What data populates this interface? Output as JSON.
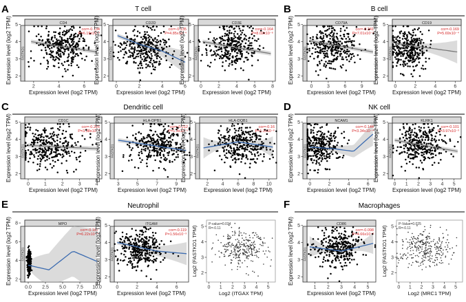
{
  "figure": {
    "panels": [
      {
        "letter": "A",
        "title": "T cell"
      },
      {
        "letter": "B",
        "title": "B cell"
      },
      {
        "letter": "C",
        "title": "Dendritic cell"
      },
      {
        "letter": "D",
        "title": "NK cell"
      },
      {
        "letter": "E",
        "title": "Neutrophil"
      },
      {
        "letter": "F",
        "title": "Macrophages"
      }
    ]
  },
  "chart_data": [
    {
      "id": "cd4",
      "panel": "A",
      "type": "scatter",
      "gene": "CD4",
      "strip": "FASTKD1",
      "corr": "cor=-0.134",
      "pval": "P=6.19x10⁻³",
      "xlabel": "Expression level (log2 TPM)",
      "ylabel": "Expression level (log2 TPM)",
      "xlim": [
        1.3,
        7.4
      ],
      "ylim": [
        1.7,
        5.3
      ],
      "xticks": [
        2,
        4,
        6
      ],
      "yticks": [
        2,
        3,
        4,
        5
      ],
      "fit": [
        [
          1.8,
          4.0
        ],
        [
          7.0,
          3.4
        ]
      ],
      "band": "narrow",
      "color": "#7a7a7a",
      "n": 330,
      "seed": 11,
      "xc": 4.4,
      "xs": 1.1,
      "yc": 3.7,
      "ys": 0.6
    },
    {
      "id": "cd2d",
      "panel": "A",
      "type": "scatter",
      "gene": "CD2D",
      "strip": "FASTKD1",
      "corr": "cor=-0.135",
      "pval": "P=4.85x10⁻⁴",
      "xlabel": "Expression level (log2 TPM)",
      "ylabel": "Expression level (log2 TPM)",
      "xlim": [
        -0.3,
        6.3
      ],
      "ylim": [
        1.7,
        5.3
      ],
      "xticks": [
        0,
        2,
        4,
        6
      ],
      "yticks": [
        2,
        3,
        4,
        5
      ],
      "fit": [
        [
          0.1,
          4.35
        ],
        [
          2.0,
          3.85
        ],
        [
          4.0,
          3.45
        ],
        [
          6.0,
          2.8
        ]
      ],
      "band": "wide-right",
      "color": "#3b6bb0",
      "n": 330,
      "seed": 23,
      "xc": 2.6,
      "xs": 1.2,
      "yc": 3.6,
      "ys": 0.6
    },
    {
      "id": "cd3e",
      "panel": "A",
      "type": "scatter",
      "gene": "CD3E",
      "strip": "FASTKD1",
      "corr": "cor=-0.164",
      "pval": "P=8.02x10⁻⁶",
      "xlabel": "Expression level (log2 TPM)",
      "ylabel": "Expression level (log2 TPM)",
      "xlim": [
        -0.3,
        8.3
      ],
      "ylim": [
        1.7,
        5.3
      ],
      "xticks": [
        0,
        2,
        4,
        6,
        8
      ],
      "yticks": [
        2,
        3,
        4,
        5
      ],
      "fit": [
        [
          0.2,
          4.0
        ],
        [
          7.8,
          3.3
        ]
      ],
      "band": "narrow",
      "color": "#7a7a7a",
      "n": 330,
      "seed": 37,
      "xc": 3.6,
      "xs": 1.5,
      "yc": 3.7,
      "ys": 0.6
    },
    {
      "id": "cd79a",
      "panel": "B",
      "type": "scatter",
      "gene": "CD79A",
      "strip": "FASTKD1",
      "corr": "cor=-0.241",
      "pval": "P=7.01x10⁻¹",
      "xlabel": "Expression level (log2 TPM)",
      "ylabel": "Expression level (log2 TPM)",
      "xlim": [
        -0.8,
        11.5
      ],
      "ylim": [
        1.7,
        5.3
      ],
      "xticks": [
        0,
        3,
        6,
        9
      ],
      "yticks": [
        2,
        3,
        4,
        5
      ],
      "fit": [
        [
          -0.3,
          4.05
        ],
        [
          11.0,
          3.4
        ]
      ],
      "band": "narrow",
      "color": "#7a7a7a",
      "n": 330,
      "seed": 41,
      "xc": 3.8,
      "xs": 2.2,
      "yc": 3.7,
      "ys": 0.6
    },
    {
      "id": "cd19",
      "panel": "B",
      "type": "scatter",
      "gene": "CD19",
      "strip": "FASTKD1",
      "corr": "cor=-0.169",
      "pval": "P=5.69x10⁻⁴",
      "xlabel": "Expression level (log2 TPM)",
      "ylabel": "Expression level (log2 TPM)",
      "xlim": [
        -0.3,
        6.6
      ],
      "ylim": [
        1.7,
        5.3
      ],
      "xticks": [
        0,
        2,
        4,
        6
      ],
      "yticks": [
        2,
        3,
        4,
        5
      ],
      "fit": [
        [
          0.0,
          3.9
        ],
        [
          6.2,
          3.4
        ]
      ],
      "band": "wide-right",
      "color": "#7a7a7a",
      "n": 330,
      "seed": 53,
      "xc": 1.2,
      "xs": 1.0,
      "yc": 3.6,
      "ys": 0.6
    },
    {
      "id": "cd1c",
      "panel": "C",
      "type": "scatter",
      "gene": "CD1C",
      "strip": "FASTKD1",
      "corr": "cor=-0.226",
      "pval": "P=3.38x10⁻⁴",
      "xlabel": "Expression level (log2 TPM)",
      "ylabel": "Expression level (log2 TPM)",
      "xlim": [
        -0.2,
        4.3
      ],
      "ylim": [
        1.7,
        5.3
      ],
      "xticks": [
        0,
        1,
        2,
        3,
        4
      ],
      "yticks": [
        2,
        3,
        4,
        5
      ],
      "fit": [
        [
          0.0,
          3.65
        ],
        [
          4.1,
          3.45
        ]
      ],
      "band": "narrow",
      "color": "#7a7a7a",
      "n": 330,
      "seed": 61,
      "xc": 1.3,
      "xs": 0.9,
      "yc": 3.6,
      "ys": 0.6
    },
    {
      "id": "hladpb1",
      "panel": "C",
      "type": "scatter",
      "gene": "HLA-DPB1",
      "strip": "FASTKD1",
      "corr": "cor=-0.212",
      "pval": "P=1.3x10⁻⁵",
      "xlabel": "Expression level (log2 TPM)",
      "ylabel": "Expression level (log2 TPM)",
      "xlim": [
        2.6,
        10.4
      ],
      "ylim": [
        1.7,
        5.3
      ],
      "xticks": [
        3,
        5,
        7,
        9
      ],
      "yticks": [
        2,
        3,
        4,
        5
      ],
      "fit": [
        [
          3.0,
          3.95
        ],
        [
          10.0,
          3.35
        ]
      ],
      "band": "narrow",
      "color": "#3b6bb0",
      "n": 330,
      "seed": 71,
      "xc": 7.0,
      "xs": 1.5,
      "yc": 3.7,
      "ys": 0.6
    },
    {
      "id": "hladqb1",
      "panel": "C",
      "type": "scatter",
      "gene": "HLA-DQB1",
      "strip": "FASTKD1",
      "corr": "cor=-0.16",
      "pval": "P=1.1x10⁻⁶",
      "xlabel": "Expression level (log2 TPM)",
      "ylabel": "Expression level (log2 TPM)",
      "xlim": [
        1.0,
        11.0
      ],
      "ylim": [
        1.7,
        5.3
      ],
      "xticks": [
        2,
        4,
        6,
        8,
        10
      ],
      "yticks": [
        2,
        3,
        4,
        5
      ],
      "fit": [
        [
          1.5,
          3.5
        ],
        [
          6.0,
          3.85
        ],
        [
          10.5,
          3.55
        ]
      ],
      "band": "wide-ends",
      "color": "#3b6bb0",
      "n": 330,
      "seed": 83,
      "xc": 6.5,
      "xs": 1.8,
      "yc": 3.7,
      "ys": 0.6
    },
    {
      "id": "ncam1",
      "panel": "D",
      "type": "scatter",
      "gene": "NCAM1",
      "strip": "FASTKD1",
      "corr": "cor=-0.144",
      "pval": "P=3.34x10⁻⁴",
      "xlabel": "Expression level (log2 TPM)",
      "ylabel": "Expression level (log2 TPM)",
      "xlim": [
        -0.3,
        6.8
      ],
      "ylim": [
        1.7,
        5.3
      ],
      "xticks": [
        0,
        2,
        4,
        6
      ],
      "yticks": [
        2,
        3,
        4,
        5
      ],
      "fit": [
        [
          0.0,
          3.55
        ],
        [
          2.5,
          3.45
        ],
        [
          4.5,
          3.3
        ],
        [
          6.5,
          4.3
        ]
      ],
      "band": "wide-right",
      "color": "#3b6bb0",
      "n": 330,
      "seed": 97,
      "xc": 1.0,
      "xs": 1.1,
      "yc": 3.6,
      "ys": 0.6
    },
    {
      "id": "klrk1",
      "panel": "D",
      "type": "scatter",
      "gene": "KLRK1",
      "strip": "FASTKD1",
      "corr": "cor=-0.101",
      "pval": "P=3.97x10⁻³",
      "xlabel": "Expression level (log2 TPM)",
      "ylabel": "Expression level (log2 TPM)",
      "xlim": [
        -0.2,
        5.6
      ],
      "ylim": [
        1.7,
        5.3
      ],
      "xticks": [
        0,
        1,
        2,
        3,
        4,
        5
      ],
      "yticks": [
        2,
        3,
        4,
        5
      ],
      "fit": [
        [
          0.0,
          3.95
        ],
        [
          5.3,
          3.3
        ]
      ],
      "band": "narrow",
      "color": "#7a7a7a",
      "n": 330,
      "seed": 103,
      "xc": 2.2,
      "xs": 1.1,
      "yc": 3.7,
      "ys": 0.6
    },
    {
      "id": "mpo",
      "panel": "E",
      "type": "scatter",
      "gene": "MPO",
      "strip": "FASTKD1",
      "corr": "cor=-0.167",
      "pval": "P=6.22x10⁻⁴",
      "xlabel": "Expression level (log2 TPM)",
      "ylabel": "Expression level (log2 TPM)",
      "xlim": [
        -0.5,
        10.5
      ],
      "ylim": [
        1.7,
        8.3
      ],
      "xticks": [
        0.0,
        2.5,
        5.0,
        7.5,
        10.0
      ],
      "yticks": [
        2,
        4,
        6,
        8
      ],
      "fit": [
        [
          0.0,
          3.5
        ],
        [
          3.0,
          3.0
        ],
        [
          6.5,
          5.0
        ],
        [
          10.0,
          3.9
        ]
      ],
      "band": "huge",
      "color": "#3b6bb0",
      "n": 330,
      "seed": 113,
      "xc": 0.1,
      "xs": 0.12,
      "yc": 3.8,
      "ys": 0.6
    },
    {
      "id": "itgam",
      "panel": "E",
      "type": "scatter",
      "gene": "ITGAM",
      "strip": "FASTKD1",
      "corr": "cor=-0.119",
      "pval": "P=1.56x10⁻³",
      "xlabel": "Expression level (log2 TPM)",
      "ylabel": "Expression level (log2 TPM)",
      "xlim": [
        -0.3,
        7.2
      ],
      "ylim": [
        1.7,
        5.3
      ],
      "xticks": [
        0,
        2,
        4,
        6
      ],
      "yticks": [
        2,
        3,
        4,
        5
      ],
      "fit": [
        [
          0.0,
          4.0
        ],
        [
          4.0,
          3.5
        ],
        [
          7.0,
          3.35
        ]
      ],
      "band": "wide-right",
      "color": "#3b6bb0",
      "n": 330,
      "seed": 127,
      "xc": 2.3,
      "xs": 1.1,
      "yc": 3.7,
      "ys": 0.6
    },
    {
      "id": "gepia-itgax",
      "panel": "E",
      "type": "scatter",
      "gepia": true,
      "legend1": "P-value=0.034",
      "legend2": "R=-0.11",
      "xlabel": "Log2 (ITGAX TPM)",
      "ylabel": "Log2 (FASTKD1 TPM)",
      "xlim": [
        -0.2,
        5.6
      ],
      "ylim": [
        1.4,
        5.4
      ],
      "xticks": [
        0,
        1,
        2,
        3,
        4,
        5
      ],
      "yticks": [
        2,
        3,
        4,
        5
      ],
      "n": 300,
      "seed": 131,
      "xc": 2.8,
      "xs": 1.0,
      "yc": 3.6,
      "ys": 0.55
    },
    {
      "id": "cd86",
      "panel": "F",
      "type": "scatter",
      "gene": "CD86",
      "strip": "FASTKD1",
      "corr": "cor=-0.098",
      "pval": "P=4.66x10⁻²",
      "xlabel": "Expression level (log2 TPM)",
      "ylabel": "Expression level (log2 TPM)",
      "xlim": [
        0.4,
        5.6
      ],
      "ylim": [
        1.7,
        5.3
      ],
      "xticks": [
        1,
        2,
        3,
        4,
        5
      ],
      "yticks": [
        2,
        3,
        4,
        5
      ],
      "fit": [
        [
          0.6,
          3.75
        ],
        [
          3.0,
          3.5
        ],
        [
          5.4,
          3.95
        ]
      ],
      "band": "wide-ends",
      "color": "#3b6bb0",
      "n": 330,
      "seed": 139,
      "xc": 2.8,
      "xs": 0.9,
      "yc": 3.7,
      "ys": 0.6
    },
    {
      "id": "gepia-mrc1",
      "panel": "F",
      "type": "scatter",
      "gepia": true,
      "legend1": "P-Value=0.025",
      "legend2": "R=-0.11",
      "xlabel": "Log2 (MRC1 TPM)",
      "ylabel": "Log2 (FASTKD1 TPM)",
      "xlim": [
        -0.2,
        5.6
      ],
      "ylim": [
        1.4,
        5.4
      ],
      "xticks": [
        0,
        1,
        2,
        3,
        4,
        5
      ],
      "yticks": [
        2,
        3,
        4,
        5
      ],
      "n": 300,
      "seed": 149,
      "xc": 2.4,
      "xs": 1.2,
      "yc": 3.6,
      "ys": 0.55
    }
  ]
}
